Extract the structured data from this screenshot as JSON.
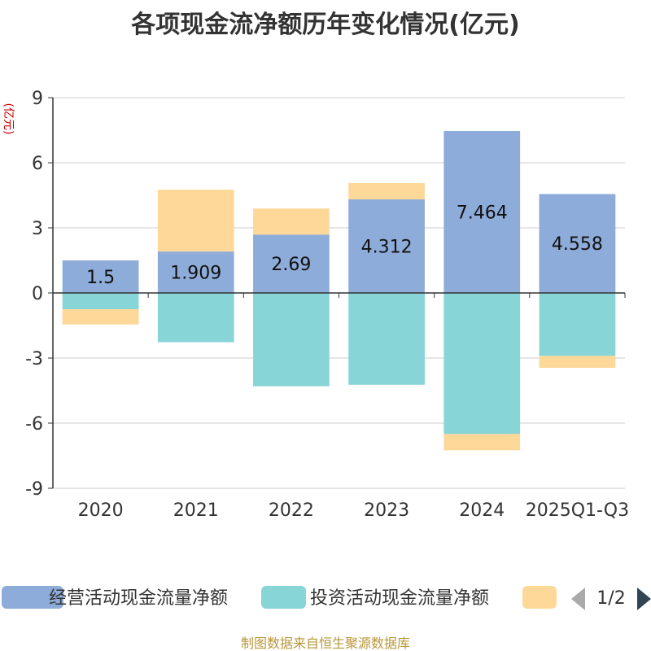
{
  "chart_data": {
    "type": "bar",
    "stacked": true,
    "title": "各项现金流净额历年变化情况(亿元)",
    "ylabel": "(亿元)",
    "xlabel": "",
    "ylim": [
      -9,
      9
    ],
    "yticks": [
      9,
      6,
      3,
      0,
      -3,
      -6,
      -9
    ],
    "grid": true,
    "categories": [
      "2020",
      "2021",
      "2022",
      "2023",
      "2024",
      "2025Q1-Q3"
    ],
    "series": [
      {
        "name": "经营活动现金流量净额",
        "color": "#8eacd9",
        "values": [
          1.5,
          1.909,
          2.69,
          4.312,
          7.464,
          4.558
        ],
        "labels": [
          "1.5",
          "1.909",
          "2.69",
          "4.312",
          "7.464",
          "4.558"
        ]
      },
      {
        "name": "投资活动现金流量净额",
        "color": "#87d5d6",
        "values": [
          -0.75,
          -2.27,
          -4.3,
          -4.23,
          -6.5,
          -2.9
        ]
      },
      {
        "name": "",
        "color": "#fdd898",
        "values": [
          -0.7,
          2.85,
          1.2,
          0.75,
          -0.75,
          -0.55
        ]
      }
    ],
    "legend_position": "bottom",
    "legend_page": "1/2"
  },
  "source_text": "制图数据来自恒生聚源数据库"
}
